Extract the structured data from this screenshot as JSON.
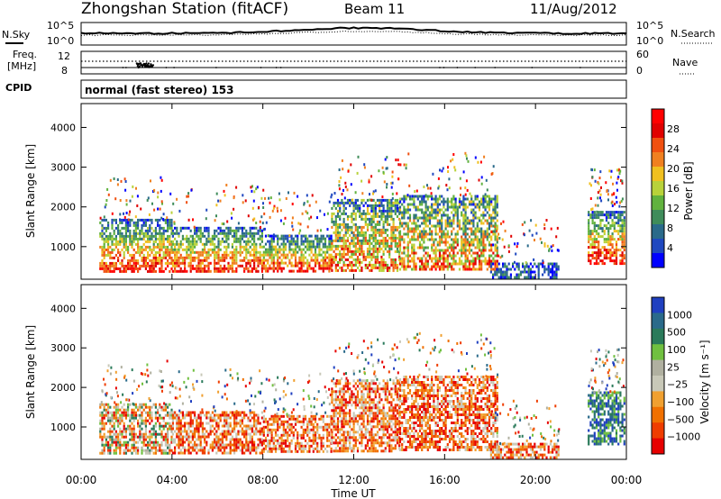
{
  "header": {
    "station": "Zhongshan Station (fitACF)",
    "beam": "Beam 11",
    "date": "11/Aug/2012"
  },
  "noise_panel": {
    "left_label": "N.Sky",
    "left_ticks": [
      "10^5",
      "10^0"
    ],
    "right_ticks": [
      "10^5",
      "10^0"
    ],
    "right_label": "N.Search"
  },
  "freq_panel": {
    "left_label_1": "Freq.",
    "left_label_2": "[MHz]",
    "left_ticks": [
      "12",
      "8"
    ],
    "right_ticks": [
      "60",
      "0"
    ],
    "right_label": "Nave"
  },
  "cpid_panel": {
    "label": "CPID",
    "text": "normal (fast stereo) 153"
  },
  "colors": {
    "power": [
      "#0000ff",
      "#1f48c0",
      "#2a6a8a",
      "#3f8c5a",
      "#61b23e",
      "#b8d23a",
      "#f0c020",
      "#f08020",
      "#f05010",
      "#e00000",
      "#ff0000"
    ],
    "velocity": [
      "#e60000",
      "#ef3d00",
      "#f07000",
      "#f0a030",
      "#c8c8b8",
      "#b0b0a0",
      "#70c040",
      "#2a7a5a",
      "#2a6a8a",
      "#2040c0"
    ]
  },
  "chart_data": [
    {
      "type": "heatmap",
      "name": "power-panel",
      "ylabel": "Slant Range [km]",
      "xlabel": "",
      "x_ticks": [
        "00:00",
        "04:00",
        "08:00",
        "12:00",
        "16:00",
        "20:00",
        "00:00"
      ],
      "x_hours": [
        0,
        4,
        8,
        12,
        16,
        20,
        24
      ],
      "xlim": [
        0,
        24
      ],
      "ylim": [
        180,
        4600
      ],
      "y_ticks": [
        1000,
        2000,
        3000,
        4000
      ],
      "colorbar": {
        "label": "Power [dB]",
        "ticks": [
          "4",
          "8",
          "12",
          "16",
          "20",
          "24",
          "28"
        ],
        "tick_values": [
          4,
          8,
          12,
          16,
          20,
          24,
          28
        ],
        "range": [
          0,
          32
        ]
      },
      "regions": [
        {
          "t0": 0.8,
          "t1": 4.0,
          "r0": 350,
          "r1": 1700,
          "level": "mixed-high"
        },
        {
          "t0": 4.0,
          "t1": 8.0,
          "r0": 350,
          "r1": 1500,
          "level": "mixed-high"
        },
        {
          "t0": 8.0,
          "t1": 11.0,
          "r0": 350,
          "r1": 1300,
          "level": "mixed-high"
        },
        {
          "t0": 11.0,
          "t1": 14.0,
          "r0": 400,
          "r1": 2200,
          "level": "mixed"
        },
        {
          "t0": 14.0,
          "t1": 18.3,
          "r0": 400,
          "r1": 2300,
          "level": "mixed"
        },
        {
          "t0": 18.0,
          "t1": 21.0,
          "r0": 200,
          "r1": 600,
          "level": "low"
        },
        {
          "t0": 22.3,
          "t1": 23.9,
          "r0": 600,
          "r1": 1900,
          "level": "mixed-high"
        }
      ]
    },
    {
      "type": "heatmap",
      "name": "velocity-panel",
      "ylabel": "Slant Range [km]",
      "xlabel": "Time UT",
      "x_ticks": [
        "00:00",
        "04:00",
        "08:00",
        "12:00",
        "16:00",
        "20:00",
        "00:00"
      ],
      "x_hours": [
        0,
        4,
        8,
        12,
        16,
        20,
        24
      ],
      "xlim": [
        0,
        24
      ],
      "ylim": [
        180,
        4600
      ],
      "y_ticks": [
        1000,
        2000,
        3000,
        4000
      ],
      "colorbar": {
        "label": "Velocity [m s⁻¹]",
        "ticks": [
          "1000",
          "500",
          "100",
          "25",
          "−25",
          "−100",
          "−500",
          "−1000"
        ]
      },
      "regions": [
        {
          "t0": 0.8,
          "t1": 4.0,
          "r0": 350,
          "r1": 1600,
          "level": "mixed-grey"
        },
        {
          "t0": 4.0,
          "t1": 8.0,
          "r0": 350,
          "r1": 1400,
          "level": "negative"
        },
        {
          "t0": 8.0,
          "t1": 11.0,
          "r0": 350,
          "r1": 1300,
          "level": "negative"
        },
        {
          "t0": 11.0,
          "t1": 14.0,
          "r0": 400,
          "r1": 2200,
          "level": "negative"
        },
        {
          "t0": 14.0,
          "t1": 18.3,
          "r0": 400,
          "r1": 2300,
          "level": "negative"
        },
        {
          "t0": 18.0,
          "t1": 21.0,
          "r0": 200,
          "r1": 600,
          "level": "negative"
        },
        {
          "t0": 22.3,
          "t1": 23.9,
          "r0": 600,
          "r1": 1900,
          "level": "positive"
        }
      ]
    }
  ]
}
